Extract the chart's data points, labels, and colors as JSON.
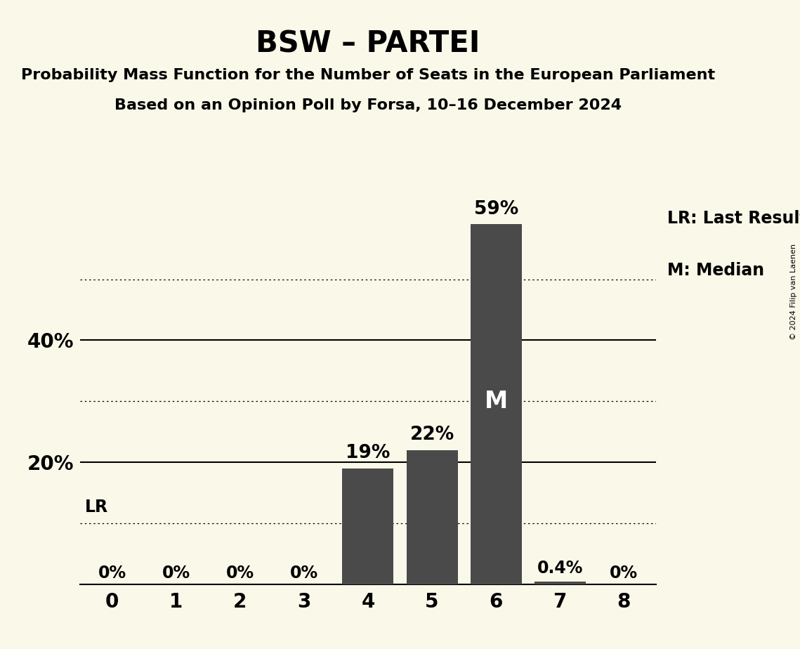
{
  "title": "BSW – PARTEI",
  "subtitle1": "Probability Mass Function for the Number of Seats in the European Parliament",
  "subtitle2": "Based on an Opinion Poll by Forsa, 10–16 December 2024",
  "copyright": "© 2024 Filip van Laenen",
  "seats": [
    0,
    1,
    2,
    3,
    4,
    5,
    6,
    7,
    8
  ],
  "probabilities": [
    0.0,
    0.0,
    0.0,
    0.0,
    0.19,
    0.22,
    0.59,
    0.004,
    0.0
  ],
  "bar_color": "#4a4a4a",
  "background_color": "#faf8e8",
  "median_seat": 6,
  "lr_seat": 0,
  "annotations": [
    "0%",
    "0%",
    "0%",
    "0%",
    "19%",
    "22%",
    "59%",
    "0.4%",
    "0%"
  ],
  "solid_yticks": [
    0.2,
    0.4
  ],
  "dotted_yticks": [
    0.1,
    0.3,
    0.5
  ],
  "legend_lr": "LR: Last Result",
  "legend_m": "M: Median",
  "title_fontsize": 30,
  "subtitle_fontsize": 16,
  "label_fontsize": 17,
  "tick_fontsize": 20,
  "annotation_fontsize_small": 17,
  "annotation_fontsize_large": 19,
  "m_fontsize": 24,
  "lr_fontsize": 17,
  "copyright_fontsize": 8,
  "ylim_max": 0.66
}
